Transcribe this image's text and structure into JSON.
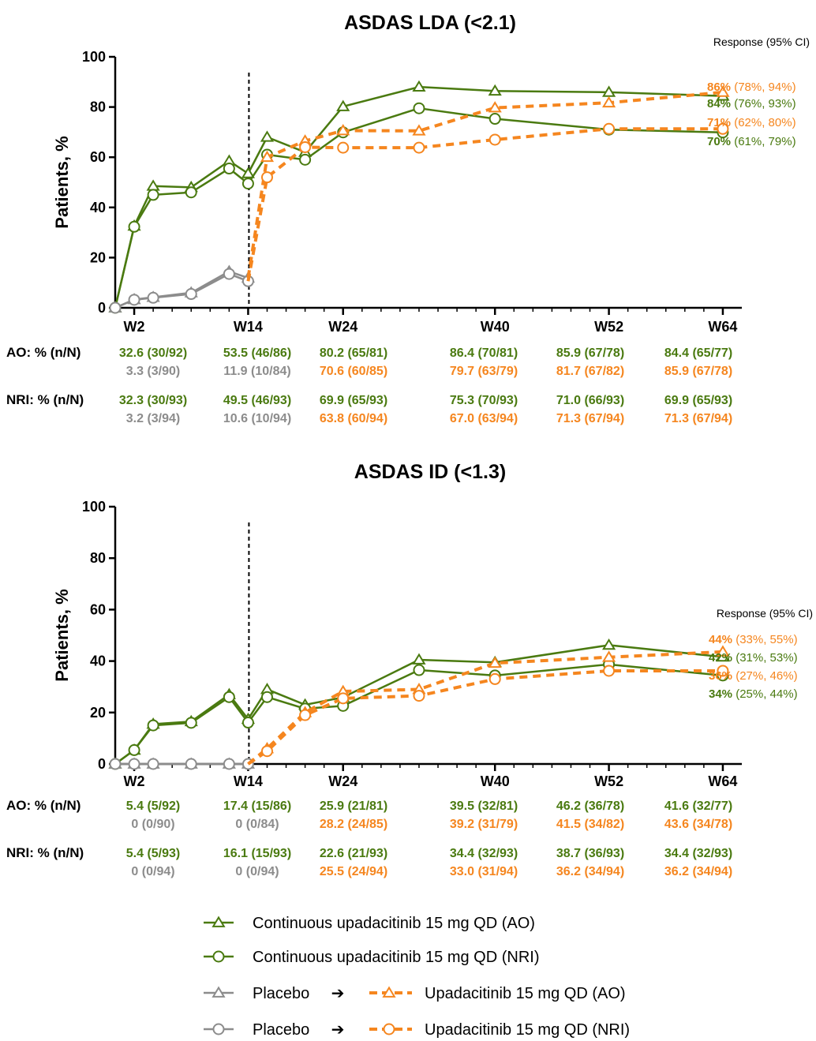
{
  "colors": {
    "cont": "#4a7a10",
    "placebo": "#8c8c8c",
    "switch": "#f5861f"
  },
  "row_labels": {
    "ao": "AO: % (n/N)",
    "nri": "NRI: % (n/N)"
  },
  "response_header": "Response (95% CI)",
  "legend": {
    "arrow": "➔",
    "items": [
      {
        "marker": "triangle",
        "text": "Continuous upadacitinib 15 mg QD (AO)"
      },
      {
        "marker": "circle",
        "text": "Continuous upadacitinib 15 mg QD (NRI)"
      },
      {
        "marker": "triangle",
        "prefix": "Placebo",
        "text": "Upadacitinib 15 mg QD (AO)"
      },
      {
        "marker": "circle",
        "prefix": "Placebo",
        "text": "Upadacitinib 15 mg QD (NRI)"
      }
    ]
  },
  "chart_data": [
    {
      "type": "line",
      "title": "ASDAS LDA (<2.1)",
      "xlabel": "",
      "ylabel": "Patients, %",
      "ylim": [
        0,
        100
      ],
      "yticks": [
        0,
        20,
        40,
        60,
        80,
        100
      ],
      "xlim": [
        0,
        66
      ],
      "x_ticks": [
        {
          "x": 2,
          "label": "W2"
        },
        {
          "x": 14,
          "label": "W14"
        },
        {
          "x": 24,
          "label": "W24"
        },
        {
          "x": 40,
          "label": "W40"
        },
        {
          "x": 52,
          "label": "W52"
        },
        {
          "x": 64,
          "label": "W64"
        }
      ],
      "switch_week": 14,
      "series": [
        {
          "name": "Continuous upadacitinib 15 mg QD (AO)",
          "color": "cont",
          "marker": "triangle",
          "dashed": false,
          "x": [
            0,
            2,
            4,
            8,
            12,
            14,
            16,
            20,
            24,
            32,
            40,
            52,
            64
          ],
          "y": [
            0,
            32.6,
            48.5,
            48.0,
            58.5,
            53.5,
            68.0,
            62.0,
            80.2,
            88.0,
            86.4,
            85.9,
            84.4
          ]
        },
        {
          "name": "Continuous upadacitinib 15 mg QD (NRI)",
          "color": "cont",
          "marker": "circle",
          "dashed": false,
          "x": [
            0,
            2,
            4,
            8,
            12,
            14,
            16,
            20,
            24,
            32,
            40,
            52,
            64
          ],
          "y": [
            0,
            32.3,
            45.0,
            46.0,
            55.5,
            49.5,
            61.0,
            59.0,
            69.9,
            79.5,
            75.3,
            71.0,
            69.9
          ]
        },
        {
          "name": "Placebo (AO)",
          "color": "placebo",
          "marker": "triangle",
          "dashed": false,
          "x": [
            0,
            2,
            4,
            8,
            12,
            14
          ],
          "y": [
            0,
            3.3,
            4.2,
            6.0,
            14.5,
            11.9
          ]
        },
        {
          "name": "Placebo (NRI)",
          "color": "placebo",
          "marker": "circle",
          "dashed": false,
          "x": [
            0,
            2,
            4,
            8,
            12,
            14
          ],
          "y": [
            0,
            3.2,
            4.0,
            5.5,
            13.5,
            10.6
          ]
        },
        {
          "name": "Upadacitinib 15 mg QD (AO)",
          "color": "switch",
          "marker": "triangle",
          "dashed": true,
          "x": [
            14,
            16,
            20,
            24,
            32,
            40,
            52,
            64
          ],
          "y": [
            11.9,
            60.0,
            66.5,
            70.6,
            70.5,
            79.7,
            81.7,
            85.9
          ]
        },
        {
          "name": "Upadacitinib 15 mg QD (NRI)",
          "color": "switch",
          "marker": "circle",
          "dashed": true,
          "x": [
            14,
            16,
            20,
            24,
            32,
            40,
            52,
            64
          ],
          "y": [
            10.6,
            52.0,
            64.0,
            63.8,
            63.8,
            67.0,
            71.3,
            71.3
          ]
        }
      ],
      "table": {
        "columns_x": [
          2,
          14,
          24,
          40,
          52,
          64
        ],
        "ao_cont": [
          "32.6 (30/92)",
          "53.5 (46/86)",
          "80.2 (65/81)",
          "86.4 (70/81)",
          "85.9 (67/78)",
          "84.4 (65/77)"
        ],
        "ao_other": [
          {
            "text": "3.3 (3/90)",
            "color": "placebo"
          },
          {
            "text": "11.9 (10/84)",
            "color": "placebo"
          },
          {
            "text": "70.6 (60/85)",
            "color": "switch"
          },
          {
            "text": "79.7 (63/79)",
            "color": "switch"
          },
          {
            "text": "81.7 (67/82)",
            "color": "switch"
          },
          {
            "text": "85.9 (67/78)",
            "color": "switch"
          }
        ],
        "nri_cont": [
          "32.3 (30/93)",
          "49.5 (46/93)",
          "69.9 (65/93)",
          "75.3 (70/93)",
          "71.0 (66/93)",
          "69.9 (65/93)"
        ],
        "nri_other": [
          {
            "text": "3.2 (3/94)",
            "color": "placebo"
          },
          {
            "text": "10.6 (10/94)",
            "color": "placebo"
          },
          {
            "text": "63.8 (60/94)",
            "color": "switch"
          },
          {
            "text": "67.0 (63/94)",
            "color": "switch"
          },
          {
            "text": "71.3 (67/94)",
            "color": "switch"
          },
          {
            "text": "71.3 (67/94)",
            "color": "switch"
          }
        ]
      },
      "responses": [
        {
          "pct": "86%",
          "ci": "(78%, 94%)",
          "color": "switch"
        },
        {
          "pct": "84%",
          "ci": "(76%, 93%)",
          "color": "cont"
        },
        {
          "pct": "71%",
          "ci": "(62%, 80%)",
          "color": "switch"
        },
        {
          "pct": "70%",
          "ci": "(61%, 79%)",
          "color": "cont"
        }
      ]
    },
    {
      "type": "line",
      "title": "ASDAS ID (<1.3)",
      "xlabel": "",
      "ylabel": "Patients, %",
      "ylim": [
        0,
        100
      ],
      "yticks": [
        0,
        20,
        40,
        60,
        80,
        100
      ],
      "xlim": [
        0,
        66
      ],
      "x_ticks": [
        {
          "x": 2,
          "label": "W2"
        },
        {
          "x": 14,
          "label": "W14"
        },
        {
          "x": 24,
          "label": "W24"
        },
        {
          "x": 40,
          "label": "W40"
        },
        {
          "x": 52,
          "label": "W52"
        },
        {
          "x": 64,
          "label": "W64"
        }
      ],
      "switch_week": 14,
      "series": [
        {
          "name": "Continuous upadacitinib 15 mg QD (AO)",
          "color": "cont",
          "marker": "triangle",
          "dashed": false,
          "x": [
            0,
            2,
            4,
            8,
            12,
            14,
            16,
            20,
            24,
            32,
            40,
            52,
            64
          ],
          "y": [
            0,
            5.4,
            15.5,
            16.5,
            27.0,
            17.4,
            29.0,
            23.0,
            25.9,
            40.5,
            39.5,
            46.2,
            41.6
          ]
        },
        {
          "name": "Continuous upadacitinib 15 mg QD (NRI)",
          "color": "cont",
          "marker": "circle",
          "dashed": false,
          "x": [
            0,
            2,
            4,
            8,
            12,
            14,
            16,
            20,
            24,
            32,
            40,
            52,
            64
          ],
          "y": [
            0,
            5.4,
            15.0,
            16.0,
            26.0,
            16.1,
            26.0,
            21.5,
            22.6,
            36.5,
            34.4,
            38.7,
            34.4
          ]
        },
        {
          "name": "Placebo (AO)",
          "color": "placebo",
          "marker": "triangle",
          "dashed": false,
          "x": [
            0,
            2,
            4,
            8,
            12,
            14
          ],
          "y": [
            0,
            0,
            0,
            0,
            0,
            0
          ]
        },
        {
          "name": "Placebo (NRI)",
          "color": "placebo",
          "marker": "circle",
          "dashed": false,
          "x": [
            0,
            2,
            4,
            8,
            12,
            14
          ],
          "y": [
            0,
            0,
            0,
            0,
            0,
            0
          ]
        },
        {
          "name": "Upadacitinib 15 mg QD (AO)",
          "color": "switch",
          "marker": "triangle",
          "dashed": true,
          "x": [
            14,
            16,
            20,
            24,
            32,
            40,
            52,
            64
          ],
          "y": [
            0,
            6.0,
            20.0,
            28.2,
            29.0,
            39.2,
            41.5,
            43.6
          ]
        },
        {
          "name": "Upadacitinib 15 mg QD (NRI)",
          "color": "switch",
          "marker": "circle",
          "dashed": true,
          "x": [
            14,
            16,
            20,
            24,
            32,
            40,
            52,
            64
          ],
          "y": [
            0,
            5.0,
            19.0,
            25.5,
            26.5,
            33.0,
            36.2,
            36.2
          ]
        }
      ],
      "table": {
        "columns_x": [
          2,
          14,
          24,
          40,
          52,
          64
        ],
        "ao_cont": [
          "5.4 (5/92)",
          "17.4 (15/86)",
          "25.9 (21/81)",
          "39.5 (32/81)",
          "46.2 (36/78)",
          "41.6 (32/77)"
        ],
        "ao_other": [
          {
            "text": "0 (0/90)",
            "color": "placebo"
          },
          {
            "text": "0 (0/84)",
            "color": "placebo"
          },
          {
            "text": "28.2 (24/85)",
            "color": "switch"
          },
          {
            "text": "39.2 (31/79)",
            "color": "switch"
          },
          {
            "text": "41.5 (34/82)",
            "color": "switch"
          },
          {
            "text": "43.6 (34/78)",
            "color": "switch"
          }
        ],
        "nri_cont": [
          "5.4 (5/93)",
          "16.1 (15/93)",
          "22.6 (21/93)",
          "34.4 (32/93)",
          "38.7 (36/93)",
          "34.4 (32/93)"
        ],
        "nri_other": [
          {
            "text": "0 (0/94)",
            "color": "placebo"
          },
          {
            "text": "0 (0/94)",
            "color": "placebo"
          },
          {
            "text": "25.5 (24/94)",
            "color": "switch"
          },
          {
            "text": "33.0 (31/94)",
            "color": "switch"
          },
          {
            "text": "36.2 (34/94)",
            "color": "switch"
          },
          {
            "text": "36.2 (34/94)",
            "color": "switch"
          }
        ]
      },
      "responses": [
        {
          "pct": "44%",
          "ci": "(33%, 55%)",
          "color": "switch"
        },
        {
          "pct": "42%",
          "ci": "(31%, 53%)",
          "color": "cont"
        },
        {
          "pct": "36%",
          "ci": "(27%, 46%)",
          "color": "switch"
        },
        {
          "pct": "34%",
          "ci": "(25%, 44%)",
          "color": "cont"
        }
      ]
    }
  ]
}
